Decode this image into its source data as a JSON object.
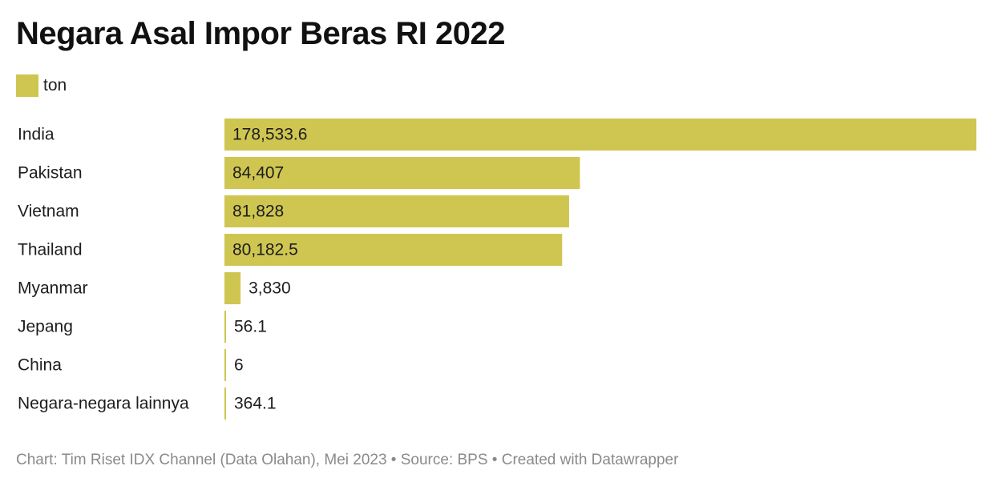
{
  "title": "Negara Asal Impor Beras RI 2022",
  "legend": {
    "label": "ton",
    "color": "#cfc651"
  },
  "footer": {
    "text": "Chart: Tim Riset IDX Channel (Data Olahan), Mei 2023 • Source: BPS • Created with Datawrapper"
  },
  "chart_data": {
    "type": "bar",
    "orientation": "horizontal",
    "title": "Negara Asal Impor Beras RI 2022",
    "xlabel": "",
    "ylabel": "",
    "legend": [
      "ton"
    ],
    "categories": [
      "India",
      "Pakistan",
      "Vietnam",
      "Thailand",
      "Myanmar",
      "Jepang",
      "China",
      "Negara-negara lainnya"
    ],
    "values": [
      178533.6,
      84407,
      81828,
      80182.5,
      3830,
      56.1,
      6,
      364.1
    ],
    "value_labels": [
      "178,533.6",
      "84,407",
      "81,828",
      "80,182.5",
      "3,830",
      "56.1",
      "6",
      "364.1"
    ],
    "xlim": [
      0,
      178533.6
    ],
    "bar_color": "#cfc651"
  }
}
